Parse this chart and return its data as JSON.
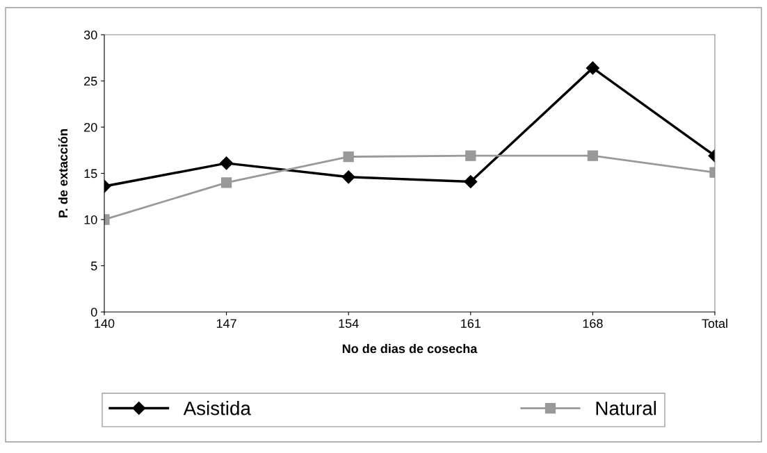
{
  "chart_data": {
    "type": "line",
    "xlabel": "No de dias de cosecha",
    "ylabel": "P. de extacción",
    "categories": [
      "140",
      "147",
      "154",
      "161",
      "168",
      "Total"
    ],
    "series": [
      {
        "name": "Asistida",
        "color": "#000000",
        "marker": "diamond",
        "values": [
          13.6,
          16.1,
          14.6,
          14.1,
          26.4,
          16.9
        ]
      },
      {
        "name": "Natural",
        "color": "#999999",
        "marker": "square",
        "values": [
          10,
          14.0,
          16.8,
          16.9,
          16.9,
          15.1
        ]
      }
    ],
    "ylim": [
      0,
      30
    ],
    "yticks": [
      0,
      5,
      10,
      15,
      20,
      25,
      30
    ],
    "grid": false,
    "legend": "bottom",
    "line_style": "solid"
  }
}
